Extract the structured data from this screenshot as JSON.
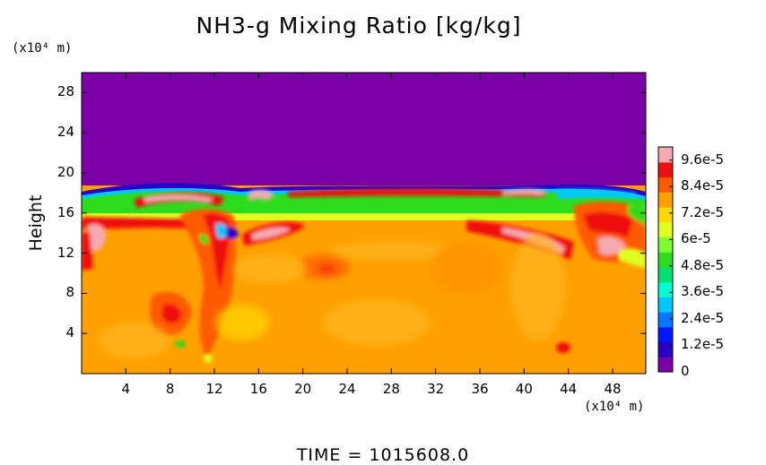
{
  "chart_data": {
    "type": "heatmap",
    "title": "NH3-g Mixing Ratio [kg/kg]",
    "ylabel": "Height",
    "y_unit": "(x10⁴ m)",
    "x_unit": "(x10⁴ m)",
    "footer": "TIME = 1015608.0",
    "x_ticks": [
      "4",
      "8",
      "12",
      "16",
      "20",
      "24",
      "28",
      "32",
      "36",
      "40",
      "44",
      "48"
    ],
    "y_ticks": [
      "4",
      "8",
      "12",
      "16",
      "20",
      "24",
      "28"
    ],
    "xlim": [
      0,
      51
    ],
    "ylim": [
      0,
      30
    ],
    "colorbar": {
      "ticks": [
        "9.6e-5",
        "8.4e-5",
        "7.2e-5",
        "6e-5",
        "4.8e-5",
        "3.6e-5",
        "2.4e-5",
        "1.2e-5",
        "0"
      ],
      "tick_values": [
        9.6e-05,
        8.4e-05,
        7.2e-05,
        6e-05,
        4.8e-05,
        3.6e-05,
        2.4e-05,
        1.2e-05,
        0
      ],
      "range": [
        0,
        0.000102
      ],
      "colors": [
        "#7c00a8",
        "#2a00c8",
        "#0018ff",
        "#0078ff",
        "#00c8ff",
        "#00ffd0",
        "#00e070",
        "#2edc1e",
        "#7cff30",
        "#e0ff20",
        "#ffd800",
        "#ffa000",
        "#ff5a00",
        "#f01010",
        "#f4aab0"
      ]
    },
    "regions": [
      {
        "name": "upper layer",
        "y_range": [
          18.5,
          30
        ],
        "value": 0
      },
      {
        "name": "green band",
        "y_range": [
          15.5,
          17.5
        ],
        "value": 5e-05
      },
      {
        "name": "lower layer",
        "y_range": [
          0,
          15
        ],
        "value": 7.8e-05
      }
    ]
  }
}
